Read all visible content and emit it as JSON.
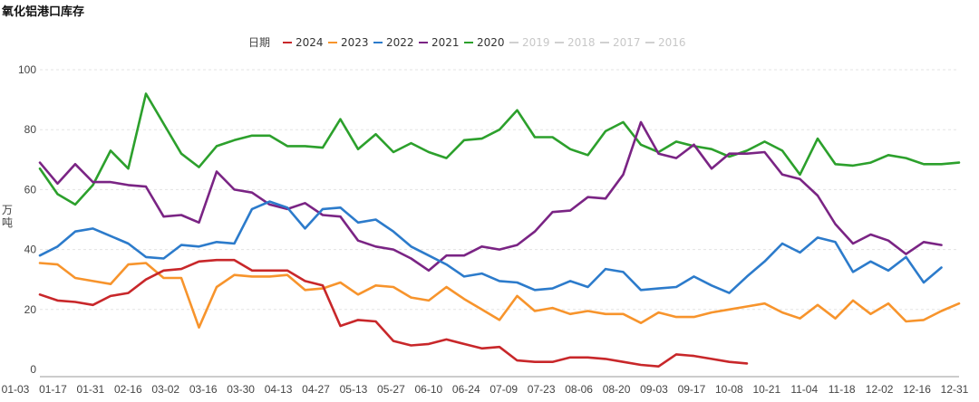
{
  "header": {
    "title": "氧化铝港口库存"
  },
  "chart_data": {
    "type": "line",
    "title": "氧化铝港口库存",
    "legend_title": "日期",
    "ylabel": "万吨",
    "ylim": [
      0,
      100
    ],
    "yticks": [
      0,
      20,
      40,
      60,
      80,
      100
    ],
    "xticks": [
      "01-03",
      "01-17",
      "01-31",
      "02-16",
      "03-02",
      "03-16",
      "03-30",
      "04-13",
      "04-27",
      "05-13",
      "05-27",
      "06-10",
      "06-24",
      "07-09",
      "07-23",
      "08-06",
      "08-20",
      "09-03",
      "09-17",
      "10-08",
      "10-21",
      "11-04",
      "11-18",
      "12-02",
      "12-16",
      "12-31"
    ],
    "series": [
      {
        "name": "2024",
        "color": "#c8272a",
        "visible": true,
        "values": [
          25,
          23,
          22.5,
          21.5,
          24.5,
          25.5,
          30,
          33,
          33.5,
          36,
          36.5,
          36.5,
          33,
          33,
          33,
          29.5,
          28,
          14.5,
          16.5,
          16,
          9.5,
          8,
          8.5,
          10,
          8.5,
          7,
          7.5,
          3,
          2.5,
          2.5,
          4,
          4,
          3.5,
          2.5,
          1.5,
          1,
          5,
          4.5,
          3.5,
          2.5,
          2
        ]
      },
      {
        "name": "2023",
        "color": "#f7942c",
        "visible": true,
        "values": [
          35.5,
          35,
          30.5,
          29.5,
          28.5,
          35,
          35.5,
          30.5,
          30.5,
          14,
          27.5,
          31.5,
          31,
          31,
          31.5,
          26.5,
          27,
          29,
          25,
          28,
          27.5,
          24,
          23,
          27.5,
          23.5,
          20,
          16.5,
          24.5,
          19.5,
          20.5,
          18.5,
          19.5,
          18.5,
          18.5,
          15.5,
          19,
          17.5,
          17.5,
          19,
          20,
          21,
          22,
          19,
          17,
          21.5,
          17,
          23,
          18.5,
          22,
          16,
          16.5,
          19.5,
          22
        ]
      },
      {
        "name": "2022",
        "color": "#2c7bcb",
        "visible": true,
        "values": [
          38,
          41,
          46,
          47,
          44.5,
          42,
          37.5,
          37,
          41.5,
          41,
          42.5,
          42,
          53.5,
          56,
          54,
          47,
          53.5,
          54,
          49,
          50,
          46,
          41,
          38,
          35,
          31,
          32,
          29.5,
          29,
          26.5,
          27,
          29.5,
          27.5,
          33.5,
          32.5,
          26.5,
          27,
          27.5,
          31,
          28,
          25.5,
          31,
          36,
          42,
          39,
          44,
          42.5,
          32.5,
          36,
          33,
          37.5,
          29,
          34
        ]
      },
      {
        "name": "2021",
        "color": "#7a2484",
        "visible": true,
        "values": [
          69,
          62,
          68.5,
          62.5,
          62.5,
          61.5,
          61,
          51,
          51.5,
          49,
          66,
          60,
          59,
          55,
          53.5,
          55.5,
          51.5,
          51,
          43,
          41,
          40,
          37,
          33,
          38,
          38,
          41,
          40,
          41.5,
          46,
          52.5,
          53,
          57.5,
          57,
          65,
          82.5,
          72,
          70.5,
          75,
          67,
          72,
          72,
          72.5,
          65,
          63.5,
          58,
          48.5,
          42,
          45,
          43,
          38.5,
          42.5,
          41.5
        ]
      },
      {
        "name": "2020",
        "color": "#2ca02c",
        "visible": true,
        "values": [
          67,
          58.5,
          55,
          61.5,
          73,
          67,
          92,
          82,
          72,
          67.5,
          74.5,
          76.5,
          78,
          78,
          74.5,
          74.5,
          74,
          83.5,
          73.5,
          78.5,
          72.5,
          75.5,
          72.5,
          70.5,
          76.5,
          77,
          80,
          86.5,
          77.5,
          77.5,
          73.5,
          71.5,
          79.5,
          82.5,
          75,
          72.5,
          76,
          74.5,
          73.5,
          71,
          73,
          76,
          73,
          65,
          77,
          68.5,
          68,
          69,
          71.5,
          70.5,
          68.5,
          68.5,
          69
        ]
      },
      {
        "name": "2019",
        "color": "#cccccc",
        "visible": false,
        "values": []
      },
      {
        "name": "2018",
        "color": "#cccccc",
        "visible": false,
        "values": []
      },
      {
        "name": "2017",
        "color": "#cccccc",
        "visible": false,
        "values": []
      },
      {
        "name": "2016",
        "color": "#cccccc",
        "visible": false,
        "values": []
      }
    ]
  }
}
